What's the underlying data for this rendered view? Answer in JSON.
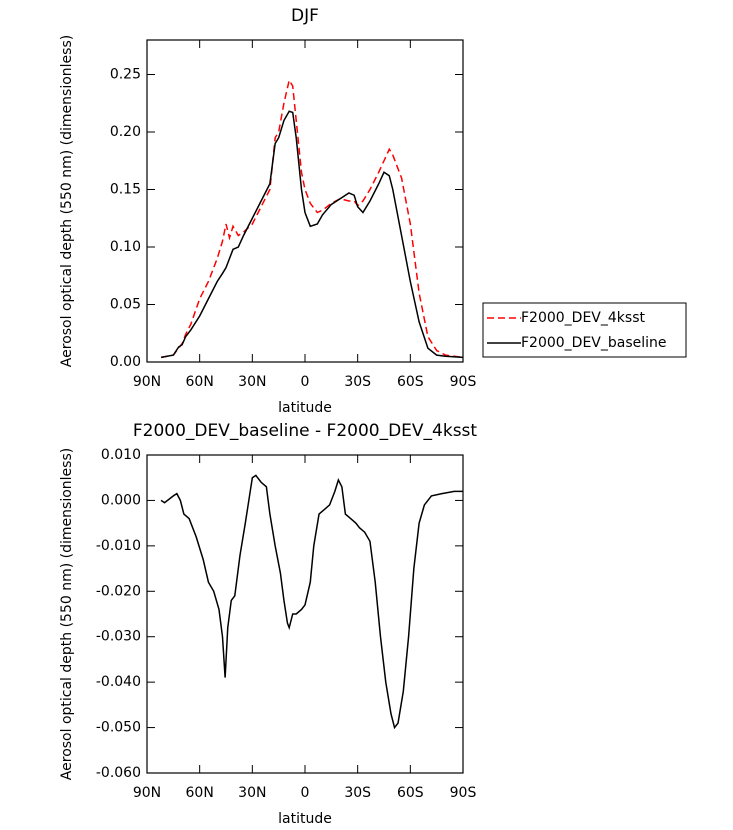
{
  "chart_data": [
    {
      "type": "line",
      "title": "DJF",
      "x_label": "latitude",
      "y_label": "Aerosol optical depth (550 nm) (dimensionless)",
      "x": [
        82,
        75,
        72,
        70,
        68,
        65,
        60,
        55,
        50,
        47,
        45,
        43,
        41,
        38,
        35,
        30,
        25,
        20,
        17,
        15,
        12,
        9,
        7,
        5,
        2,
        0,
        -3,
        -7,
        -10,
        -15,
        -20,
        -25,
        -28,
        -30,
        -33,
        -37,
        -42,
        -45,
        -48,
        -50,
        -55,
        -60,
        -65,
        -70,
        -75,
        -80,
        -90
      ],
      "series": [
        {
          "name": "F2000_DEV_4ksst",
          "color": "#ff0000",
          "line_style": "dashed",
          "values": [
            0.004,
            0.006,
            0.012,
            0.016,
            0.024,
            0.033,
            0.055,
            0.07,
            0.09,
            0.105,
            0.12,
            0.108,
            0.118,
            0.11,
            0.113,
            0.12,
            0.135,
            0.15,
            0.195,
            0.2,
            0.225,
            0.245,
            0.24,
            0.21,
            0.165,
            0.15,
            0.138,
            0.13,
            0.132,
            0.138,
            0.142,
            0.14,
            0.14,
            0.136,
            0.14,
            0.15,
            0.165,
            0.175,
            0.185,
            0.18,
            0.16,
            0.12,
            0.06,
            0.022,
            0.01,
            0.006,
            0.004
          ]
        },
        {
          "name": "F2000_DEV_baseline",
          "color": "#000000",
          "line_style": "solid",
          "values": [
            0.004,
            0.006,
            0.013,
            0.015,
            0.022,
            0.028,
            0.04,
            0.055,
            0.07,
            0.077,
            0.082,
            0.09,
            0.098,
            0.1,
            0.11,
            0.125,
            0.14,
            0.155,
            0.19,
            0.195,
            0.21,
            0.218,
            0.217,
            0.195,
            0.15,
            0.13,
            0.118,
            0.12,
            0.128,
            0.137,
            0.142,
            0.147,
            0.145,
            0.135,
            0.13,
            0.14,
            0.155,
            0.165,
            0.162,
            0.15,
            0.11,
            0.07,
            0.035,
            0.012,
            0.006,
            0.005,
            0.004
          ]
        }
      ],
      "xlim": [
        90,
        -90
      ],
      "xticks": [
        {
          "value": 90,
          "label": "90N"
        },
        {
          "value": 60,
          "label": "60N"
        },
        {
          "value": 30,
          "label": "30N"
        },
        0,
        {
          "value": -30,
          "label": "30S"
        },
        {
          "value": -60,
          "label": "60S"
        },
        {
          "value": -90,
          "label": "90S"
        }
      ],
      "ylim": [
        0,
        0.28
      ],
      "yticks": [
        {
          "value": 0,
          "label": "0.00"
        },
        {
          "value": 0.05,
          "label": "0.05"
        },
        {
          "value": 0.1,
          "label": "0.10"
        },
        {
          "value": 0.15,
          "label": "0.15"
        },
        {
          "value": 0.2,
          "label": "0.20"
        },
        {
          "value": 0.25,
          "label": "0.25"
        }
      ],
      "legend": "right"
    },
    {
      "type": "line",
      "title": "F2000_DEV_baseline - F2000_DEV_4ksst",
      "x_label": "latitude",
      "y_label": "Aerosol optical depth (550 nm) (dimensionless)",
      "x": [
        82,
        80,
        75,
        73,
        71,
        69,
        66,
        62,
        58,
        55,
        52,
        49,
        47,
        45.5,
        44,
        42,
        40,
        37,
        34,
        32,
        30,
        28,
        25,
        22,
        20,
        17,
        14,
        12,
        10,
        9,
        7,
        5,
        2,
        0,
        -3,
        -5,
        -8,
        -11,
        -14,
        -17,
        -19,
        -21,
        -23,
        -26,
        -29,
        -31,
        -34,
        -37,
        -40,
        -43,
        -46,
        -49,
        -51,
        -53,
        -56,
        -59,
        -62,
        -65,
        -68,
        -72,
        -78,
        -85,
        -90
      ],
      "series": [
        {
          "color": "#000000",
          "line_style": "solid",
          "values": [
            0,
            -0.0005,
            0.001,
            0.0015,
            0,
            -0.003,
            -0.004,
            -0.008,
            -0.013,
            -0.018,
            -0.02,
            -0.024,
            -0.03,
            -0.039,
            -0.028,
            -0.022,
            -0.021,
            -0.012,
            -0.005,
            0,
            0.005,
            0.0055,
            0.004,
            0.003,
            -0.003,
            -0.01,
            -0.016,
            -0.022,
            -0.027,
            -0.028,
            -0.025,
            -0.025,
            -0.024,
            -0.023,
            -0.018,
            -0.01,
            -0.003,
            -0.002,
            -0.001,
            0.002,
            0.0045,
            0.003,
            -0.003,
            -0.004,
            -0.005,
            -0.006,
            -0.007,
            -0.009,
            -0.018,
            -0.03,
            -0.04,
            -0.047,
            -0.05,
            -0.049,
            -0.042,
            -0.03,
            -0.015,
            -0.005,
            -0.001,
            0.001,
            0.0015,
            0.002,
            0.002
          ]
        }
      ],
      "xlim": [
        90,
        -90
      ],
      "xticks": [
        {
          "value": 90,
          "label": "90N"
        },
        {
          "value": 60,
          "label": "60N"
        },
        {
          "value": 30,
          "label": "30N"
        },
        0,
        {
          "value": -30,
          "label": "30S"
        },
        {
          "value": -60,
          "label": "60S"
        },
        {
          "value": -90,
          "label": "90S"
        }
      ],
      "ylim": [
        -0.06,
        0.01
      ],
      "yticks": [
        {
          "value": 0.01,
          "label": "0.010"
        },
        {
          "value": 0,
          "label": "0.000"
        },
        {
          "value": -0.01,
          "label": "-0.010"
        },
        {
          "value": -0.02,
          "label": "-0.020"
        },
        {
          "value": -0.03,
          "label": "-0.030"
        },
        {
          "value": -0.04,
          "label": "-0.040"
        },
        {
          "value": -0.05,
          "label": "-0.050"
        },
        {
          "value": -0.06,
          "label": "-0.060"
        }
      ]
    }
  ]
}
